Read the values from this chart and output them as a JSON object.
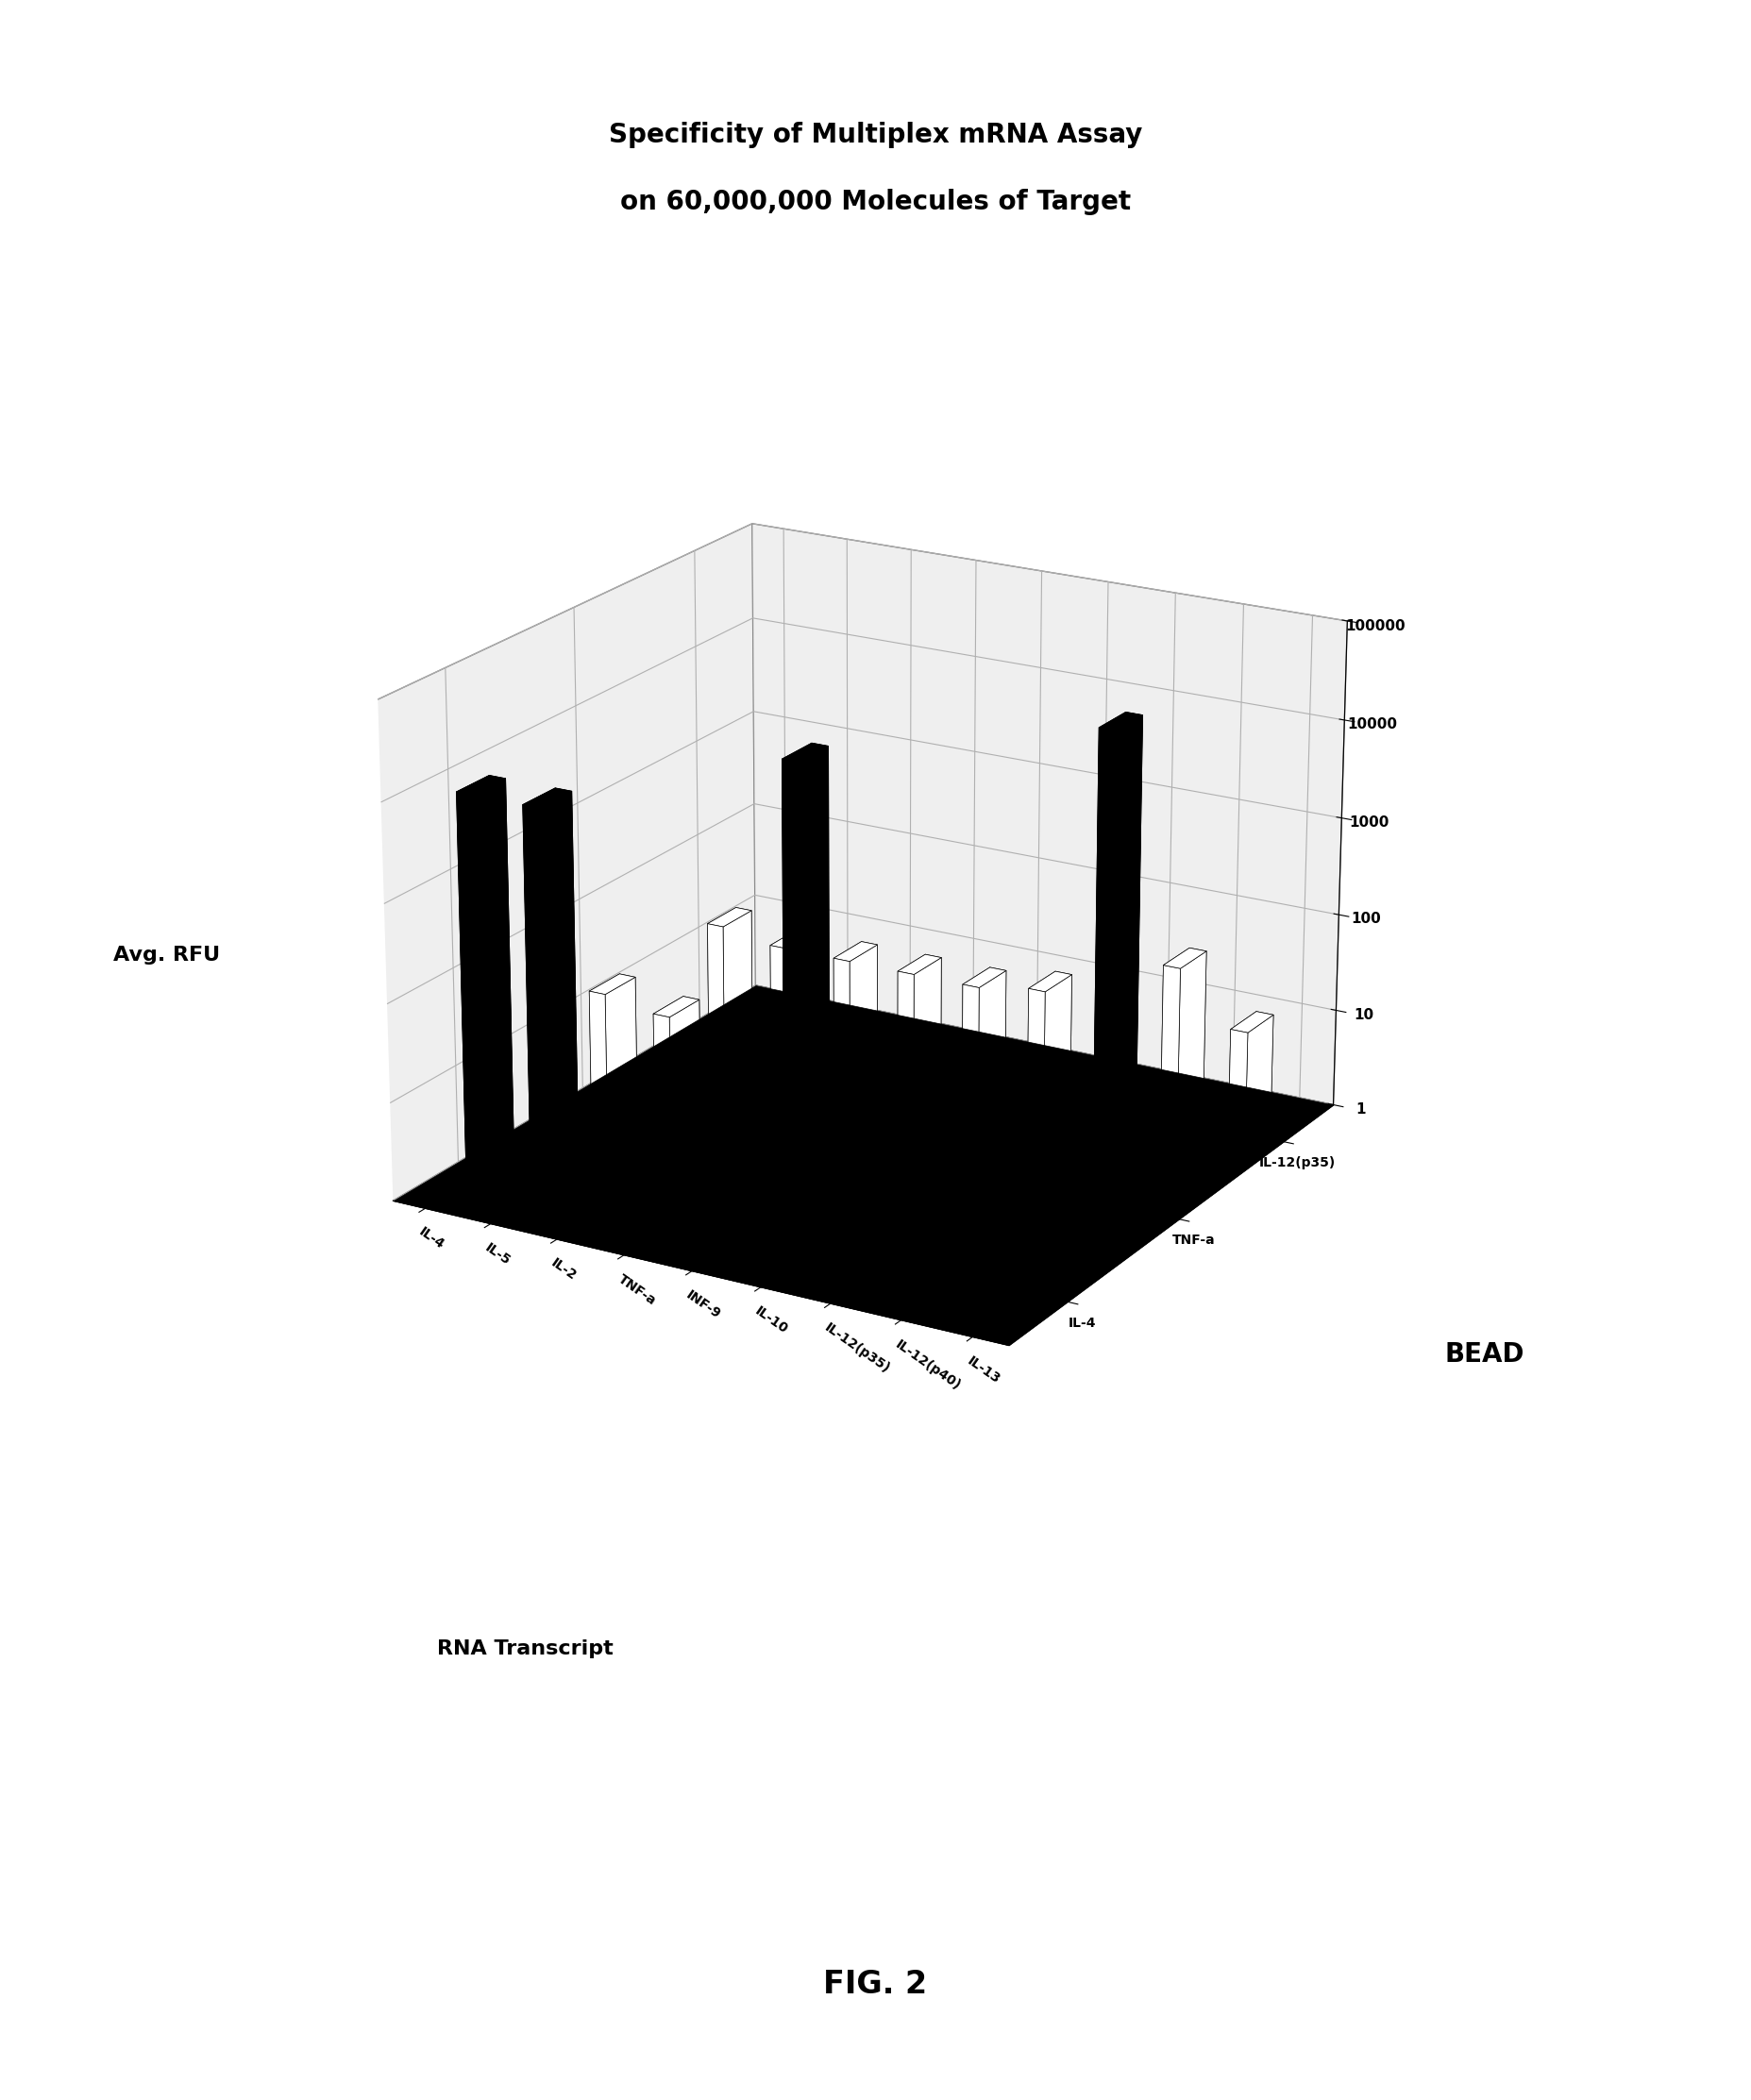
{
  "title_line1": "Specificity of Multiplex mRNA Assay",
  "title_line2": "on 60,000,000 Molecules of Target",
  "xlabel": "RNA Transcript",
  "ylabel": "BEAD",
  "zlabel": "Avg. RFU",
  "fig_label": "FIG. 2",
  "rna_transcripts": [
    "IL-4",
    "IL-5",
    "IL-2",
    "TNF-a",
    "INF-9",
    "IL-10",
    "IL-12(p35)",
    "IL-12(p40)",
    "IL-13"
  ],
  "bead_labels": [
    "IL-4",
    "TNF-a",
    "IL-12(p35)"
  ],
  "ztick_vals": [
    1,
    10,
    100,
    1000,
    10000,
    100000
  ],
  "data_matrix": [
    [
      8000,
      8000,
      15,
      15,
      12,
      15,
      15,
      15,
      15
    ],
    [
      15,
      12,
      12,
      9000,
      12,
      15,
      15,
      15,
      15
    ],
    [
      15,
      12,
      12,
      12,
      12,
      15,
      10000,
      50,
      15
    ]
  ],
  "specific_threshold": 500,
  "bar_width": 0.25,
  "bar_depth": 0.25,
  "bar_color_high": "#000000",
  "bar_color_low": "#ffffff",
  "bar_color_medium": "#888888",
  "bar_edge_color": "#000000",
  "floor_color": "#000000",
  "background_color": "#ffffff",
  "title_fontsize": 20,
  "axis_label_fontsize": 16,
  "bead_label_fontsize": 20,
  "tick_fontsize": 11,
  "fig_label_fontsize": 24,
  "elev": 20,
  "azim": -60
}
